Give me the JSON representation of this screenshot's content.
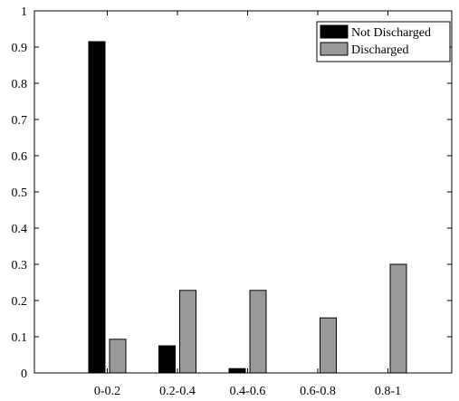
{
  "chart_data": {
    "type": "bar",
    "categories": [
      "0-0.2",
      "0.2-0.4",
      "0.4-0.6",
      "0.6-0.8",
      "0.8-1"
    ],
    "series": [
      {
        "name": "Not Discharged",
        "color": "#000000",
        "values": [
          0.915,
          0.075,
          0.012,
          0.0,
          0.0
        ]
      },
      {
        "name": "Discharged",
        "color": "#999999",
        "values": [
          0.093,
          0.228,
          0.228,
          0.152,
          0.3
        ]
      }
    ],
    "title": "",
    "xlabel": "",
    "ylabel": "",
    "ylim": [
      0,
      1
    ],
    "yticks": [
      "0",
      "0.1",
      "0.2",
      "0.3",
      "0.4",
      "0.5",
      "0.6",
      "0.7",
      "0.8",
      "0.9",
      "1"
    ],
    "legend_position": "top-right",
    "grid": false
  }
}
